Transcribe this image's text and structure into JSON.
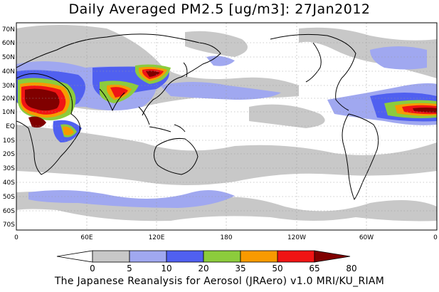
{
  "title": "Daily Averaged PM2.5 [ug/m3]: 27Jan2012",
  "credit": "The Japanese Reanalysis for Aerosol (JRAero) v1.0 MRI/KU_RIAM",
  "lat_labels": [
    "70N",
    "60N",
    "50N",
    "40N",
    "30N",
    "20N",
    "10N",
    "EQ",
    "10S",
    "20S",
    "30S",
    "40S",
    "50S",
    "60S",
    "70S"
  ],
  "lon_labels": [
    "0",
    "60E",
    "120E",
    "180",
    "120W",
    "60W",
    "0"
  ],
  "colorbar": {
    "labels": [
      "0",
      "5",
      "10",
      "20",
      "35",
      "50",
      "65",
      "80"
    ],
    "colors": [
      "#ffffff",
      "#c8c8c8",
      "#a0a8f0",
      "#5060f0",
      "#8ccc3c",
      "#f89a00",
      "#f01414",
      "#800000"
    ]
  }
}
